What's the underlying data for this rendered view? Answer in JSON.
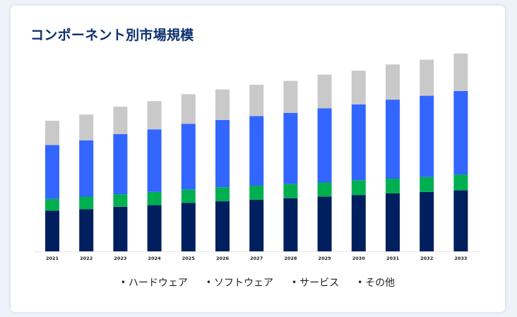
{
  "title": "コンポーネント別市場規模",
  "colors": {
    "background": "#eef3f9",
    "card": "#ffffff",
    "title": "#0d2f6e"
  },
  "chart_data": {
    "type": "bar",
    "stacked": true,
    "title": "コンポーネント別市場規模",
    "xlabel": "",
    "ylabel": "",
    "categories": [
      "2021",
      "2022",
      "2023",
      "2024",
      "2025",
      "2026",
      "2027",
      "2028",
      "2029",
      "2030",
      "2031",
      "2032",
      "2033"
    ],
    "series": [
      {
        "name": "ハードウェア",
        "color": "#001f5f",
        "values": [
          52,
          54,
          57,
          59,
          62,
          64,
          66,
          68,
          70,
          72,
          74,
          76,
          78
        ]
      },
      {
        "name": "ソフトウェア",
        "color": "#00b050",
        "values": [
          15,
          16,
          16,
          17,
          17,
          18,
          18,
          18,
          18,
          19,
          19,
          19,
          20
        ]
      },
      {
        "name": "サービス",
        "color": "#3366ff",
        "values": [
          69,
          72,
          77,
          80,
          84,
          86,
          89,
          91,
          95,
          97,
          101,
          104,
          107
        ]
      },
      {
        "name": "その他",
        "color": "#c9c9c9",
        "values": [
          31,
          33,
          35,
          36,
          38,
          39,
          40,
          41,
          43,
          43,
          45,
          46,
          48
        ]
      }
    ],
    "ylim": [
      0,
      260
    ],
    "grid": false,
    "legend": "bottom"
  }
}
